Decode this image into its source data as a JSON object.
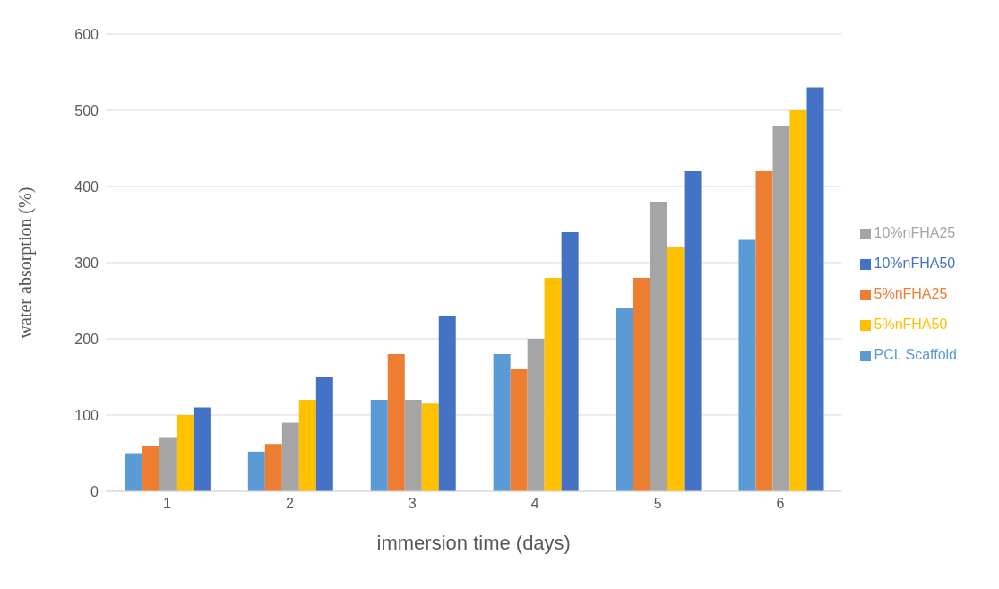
{
  "chart_data": {
    "type": "bar",
    "xlabel": "immersion time (days)",
    "ylabel": "water absorption (%)",
    "categories": [
      "1",
      "2",
      "3",
      "4",
      "5",
      "6"
    ],
    "series": [
      {
        "name": "PCL Scaffold",
        "color": "#5b9bd5",
        "values": [
          50,
          52,
          120,
          180,
          240,
          330
        ]
      },
      {
        "name": "5%nFHA25",
        "color": "#ed7d31",
        "values": [
          60,
          62,
          180,
          160,
          280,
          420
        ]
      },
      {
        "name": "10%nFHA25",
        "color": "#a5a5a5",
        "values": [
          70,
          90,
          120,
          200,
          380,
          480
        ]
      },
      {
        "name": "5%nFHA50",
        "color": "#ffc000",
        "values": [
          100,
          120,
          115,
          280,
          320,
          500
        ]
      },
      {
        "name": "10%nFHA50",
        "color": "#4472c4",
        "values": [
          110,
          150,
          230,
          340,
          420,
          530
        ]
      }
    ],
    "ylim": [
      0,
      600
    ],
    "yticks": [
      0,
      100,
      200,
      300,
      400,
      500,
      600
    ],
    "grid": "y",
    "legend": "right"
  }
}
